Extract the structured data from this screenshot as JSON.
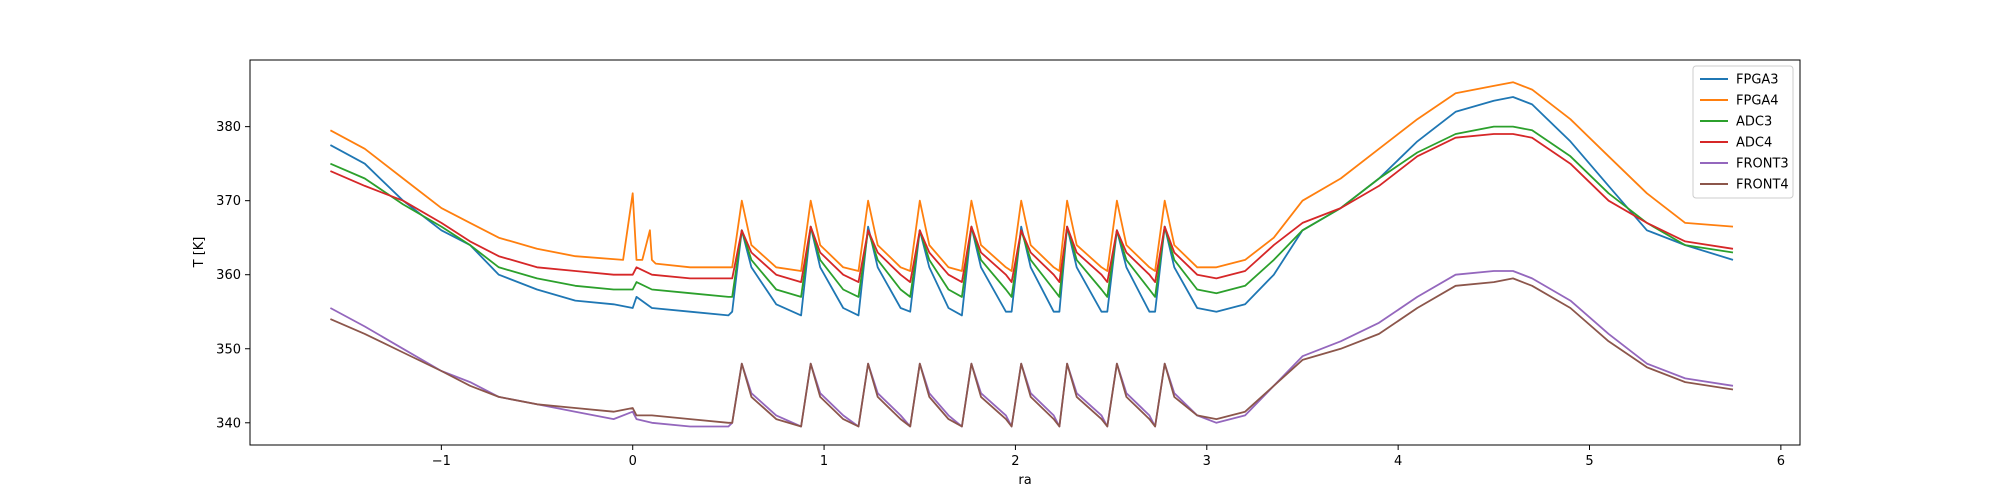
{
  "chart_data": {
    "type": "line",
    "title": "",
    "xlabel": "ra",
    "ylabel": "T [K]",
    "xlim": [
      -2.0,
      6.1
    ],
    "ylim": [
      337,
      389
    ],
    "x_ticks": [
      -1,
      0,
      1,
      2,
      3,
      4,
      5,
      6
    ],
    "y_ticks": [
      340,
      350,
      360,
      370,
      380
    ],
    "grid": false,
    "legend_position": "top-right",
    "colors": {
      "FPGA3": "#1f77b4",
      "FPGA4": "#ff7f0e",
      "ADC3": "#2ca02c",
      "ADC4": "#d62728",
      "FRONT3": "#9467bd",
      "FRONT4": "#8c564b"
    },
    "series": [
      {
        "name": "FPGA3",
        "x": [
          -1.58,
          -1.4,
          -1.2,
          -1.0,
          -0.85,
          -0.7,
          -0.5,
          -0.3,
          -0.1,
          0.0,
          0.02,
          0.1,
          0.3,
          0.5,
          0.52,
          0.57,
          0.62,
          0.75,
          0.88,
          0.93,
          0.98,
          1.1,
          1.18,
          1.23,
          1.28,
          1.4,
          1.45,
          1.5,
          1.55,
          1.65,
          1.72,
          1.77,
          1.82,
          1.95,
          1.98,
          2.03,
          2.08,
          2.2,
          2.23,
          2.27,
          2.32,
          2.45,
          2.48,
          2.53,
          2.58,
          2.7,
          2.73,
          2.78,
          2.83,
          2.95,
          3.05,
          3.2,
          3.35,
          3.5,
          3.7,
          3.9,
          4.1,
          4.3,
          4.5,
          4.6,
          4.7,
          4.9,
          5.1,
          5.3,
          5.5,
          5.75
        ],
        "y": [
          377.5,
          375,
          370,
          366,
          364,
          360,
          358,
          356.5,
          356,
          355.5,
          357,
          355.5,
          355,
          354.5,
          355,
          366,
          361,
          356,
          354.5,
          366.5,
          361,
          355.5,
          354.5,
          366.5,
          361,
          355.5,
          355,
          366,
          361,
          355.5,
          354.5,
          366.5,
          361,
          355,
          355,
          366.5,
          361,
          355,
          355,
          366.5,
          361,
          355,
          355,
          366,
          361,
          355,
          355,
          366.5,
          361,
          355.5,
          355,
          356,
          360,
          366,
          369,
          373,
          378,
          382,
          383.5,
          384,
          383,
          378,
          372,
          366,
          364,
          362
        ]
      },
      {
        "name": "FPGA4",
        "x": [
          -1.58,
          -1.4,
          -1.2,
          -1.0,
          -0.85,
          -0.7,
          -0.5,
          -0.3,
          -0.05,
          0.0,
          0.02,
          0.05,
          0.09,
          0.1,
          0.12,
          0.3,
          0.5,
          0.52,
          0.57,
          0.62,
          0.75,
          0.88,
          0.93,
          0.98,
          1.1,
          1.18,
          1.23,
          1.28,
          1.4,
          1.45,
          1.5,
          1.55,
          1.65,
          1.72,
          1.77,
          1.82,
          1.95,
          1.98,
          2.03,
          2.08,
          2.2,
          2.23,
          2.27,
          2.32,
          2.45,
          2.48,
          2.53,
          2.58,
          2.7,
          2.73,
          2.78,
          2.83,
          2.95,
          3.05,
          3.2,
          3.35,
          3.5,
          3.7,
          3.9,
          4.1,
          4.3,
          4.5,
          4.6,
          4.7,
          4.9,
          5.1,
          5.3,
          5.5,
          5.75
        ],
        "y": [
          379.5,
          377,
          373,
          369,
          367,
          365,
          363.5,
          362.5,
          362,
          371,
          362,
          362,
          366,
          362,
          361.5,
          361,
          361,
          361,
          370,
          364,
          361,
          360.5,
          370,
          364,
          361,
          360.5,
          370,
          364,
          361,
          360.5,
          370,
          364,
          361,
          360.5,
          370,
          364,
          361,
          360.5,
          370,
          364,
          361,
          360.5,
          370,
          364,
          361,
          360.5,
          370,
          364,
          361,
          360.5,
          370,
          364,
          361,
          361,
          362,
          365,
          370,
          373,
          377,
          381,
          384.5,
          385.5,
          386,
          385,
          381,
          376,
          371,
          367,
          366.5
        ]
      },
      {
        "name": "ADC3",
        "x": [
          -1.58,
          -1.4,
          -1.2,
          -1.0,
          -0.85,
          -0.7,
          -0.5,
          -0.3,
          -0.1,
          0.0,
          0.02,
          0.1,
          0.3,
          0.5,
          0.52,
          0.57,
          0.62,
          0.75,
          0.88,
          0.93,
          0.98,
          1.1,
          1.18,
          1.23,
          1.28,
          1.4,
          1.45,
          1.5,
          1.55,
          1.65,
          1.72,
          1.77,
          1.82,
          1.95,
          1.98,
          2.03,
          2.08,
          2.2,
          2.23,
          2.27,
          2.32,
          2.45,
          2.48,
          2.53,
          2.58,
          2.7,
          2.73,
          2.78,
          2.83,
          2.95,
          3.05,
          3.2,
          3.35,
          3.5,
          3.7,
          3.9,
          4.1,
          4.3,
          4.5,
          4.6,
          4.7,
          4.9,
          5.1,
          5.3,
          5.5,
          5.75
        ],
        "y": [
          375,
          373,
          369.5,
          366.5,
          364,
          361,
          359.5,
          358.5,
          358,
          358,
          359,
          358,
          357.5,
          357,
          357,
          366,
          362,
          358,
          357,
          366.5,
          362,
          358,
          357,
          366,
          362,
          358,
          357,
          366,
          362,
          358,
          357,
          366.5,
          362,
          358,
          357,
          366,
          362,
          358,
          357,
          366.5,
          362,
          358,
          357,
          366,
          362,
          358,
          357,
          366.5,
          362,
          358,
          357.5,
          358.5,
          362,
          366,
          369,
          373,
          376.5,
          379,
          380,
          380,
          379.5,
          376,
          371,
          367,
          364,
          363
        ]
      },
      {
        "name": "ADC4",
        "x": [
          -1.58,
          -1.4,
          -1.2,
          -1.0,
          -0.85,
          -0.7,
          -0.5,
          -0.3,
          -0.1,
          0.0,
          0.02,
          0.1,
          0.3,
          0.5,
          0.52,
          0.57,
          0.62,
          0.75,
          0.88,
          0.93,
          0.98,
          1.1,
          1.18,
          1.23,
          1.28,
          1.4,
          1.45,
          1.5,
          1.55,
          1.65,
          1.72,
          1.77,
          1.82,
          1.95,
          1.98,
          2.03,
          2.08,
          2.2,
          2.23,
          2.27,
          2.32,
          2.45,
          2.48,
          2.53,
          2.58,
          2.7,
          2.73,
          2.78,
          2.83,
          2.95,
          3.05,
          3.2,
          3.35,
          3.5,
          3.7,
          3.9,
          4.1,
          4.3,
          4.5,
          4.6,
          4.7,
          4.9,
          5.1,
          5.3,
          5.5,
          5.75
        ],
        "y": [
          374,
          372,
          370,
          367,
          364.5,
          362.5,
          361,
          360.5,
          360,
          360,
          361,
          360,
          359.5,
          359.5,
          359.5,
          366,
          363,
          360,
          359,
          366.5,
          363,
          360,
          359,
          366,
          363,
          360,
          359,
          366,
          363,
          360,
          359,
          366.5,
          363,
          360,
          359,
          366,
          363,
          360,
          359,
          366.5,
          363,
          360,
          359,
          366,
          363,
          360,
          359,
          366.5,
          363,
          360,
          359.5,
          360.5,
          364,
          367,
          369,
          372,
          376,
          378.5,
          379,
          379,
          378.5,
          375,
          370,
          367,
          364.5,
          363.5
        ]
      },
      {
        "name": "FRONT3",
        "x": [
          -1.58,
          -1.4,
          -1.2,
          -1.0,
          -0.85,
          -0.7,
          -0.5,
          -0.3,
          -0.1,
          0.0,
          0.02,
          0.1,
          0.3,
          0.5,
          0.52,
          0.57,
          0.62,
          0.75,
          0.88,
          0.93,
          0.98,
          1.1,
          1.18,
          1.23,
          1.28,
          1.4,
          1.45,
          1.5,
          1.55,
          1.65,
          1.72,
          1.77,
          1.82,
          1.95,
          1.98,
          2.03,
          2.08,
          2.2,
          2.23,
          2.27,
          2.32,
          2.45,
          2.48,
          2.53,
          2.58,
          2.7,
          2.73,
          2.78,
          2.83,
          2.95,
          3.05,
          3.2,
          3.35,
          3.5,
          3.7,
          3.9,
          4.1,
          4.3,
          4.5,
          4.6,
          4.7,
          4.9,
          5.1,
          5.3,
          5.5,
          5.75
        ],
        "y": [
          355.5,
          353,
          350,
          347,
          345.5,
          343.5,
          342.5,
          341.5,
          340.5,
          341.5,
          340.5,
          340,
          339.5,
          339.5,
          340,
          348,
          344,
          341,
          339.5,
          348,
          344,
          341,
          339.5,
          348,
          344,
          341,
          339.5,
          348,
          344,
          341,
          339.5,
          348,
          344,
          341,
          339.5,
          348,
          344,
          341,
          339.5,
          348,
          344,
          341,
          339.5,
          348,
          344,
          341,
          339.5,
          348,
          344,
          341,
          340,
          341,
          345,
          349,
          351,
          353.5,
          357,
          360,
          360.5,
          360.5,
          359.5,
          356.5,
          352,
          348,
          346,
          345
        ]
      },
      {
        "name": "FRONT4",
        "x": [
          -1.58,
          -1.4,
          -1.2,
          -1.0,
          -0.85,
          -0.7,
          -0.5,
          -0.3,
          -0.1,
          0.0,
          0.02,
          0.1,
          0.3,
          0.5,
          0.52,
          0.57,
          0.62,
          0.75,
          0.88,
          0.93,
          0.98,
          1.1,
          1.18,
          1.23,
          1.28,
          1.4,
          1.45,
          1.5,
          1.55,
          1.65,
          1.72,
          1.77,
          1.82,
          1.95,
          1.98,
          2.03,
          2.08,
          2.2,
          2.23,
          2.27,
          2.32,
          2.45,
          2.48,
          2.53,
          2.58,
          2.7,
          2.73,
          2.78,
          2.83,
          2.95,
          3.05,
          3.2,
          3.35,
          3.5,
          3.7,
          3.9,
          4.1,
          4.3,
          4.5,
          4.6,
          4.7,
          4.9,
          5.1,
          5.3,
          5.5,
          5.75
        ],
        "y": [
          354,
          352,
          349.5,
          347,
          345,
          343.5,
          342.5,
          342,
          341.5,
          342,
          341,
          341,
          340.5,
          340,
          340,
          348,
          343.5,
          340.5,
          339.5,
          348,
          343.5,
          340.5,
          339.5,
          348,
          343.5,
          340.5,
          339.5,
          348,
          343.5,
          340.5,
          339.5,
          348,
          343.5,
          340.5,
          339.5,
          348,
          343.5,
          340.5,
          339.5,
          348,
          343.5,
          340.5,
          339.5,
          348,
          343.5,
          340.5,
          339.5,
          348,
          343.5,
          341,
          340.5,
          341.5,
          345,
          348.5,
          350,
          352,
          355.5,
          358.5,
          359,
          359.5,
          358.5,
          355.5,
          351,
          347.5,
          345.5,
          344.5
        ]
      }
    ]
  }
}
